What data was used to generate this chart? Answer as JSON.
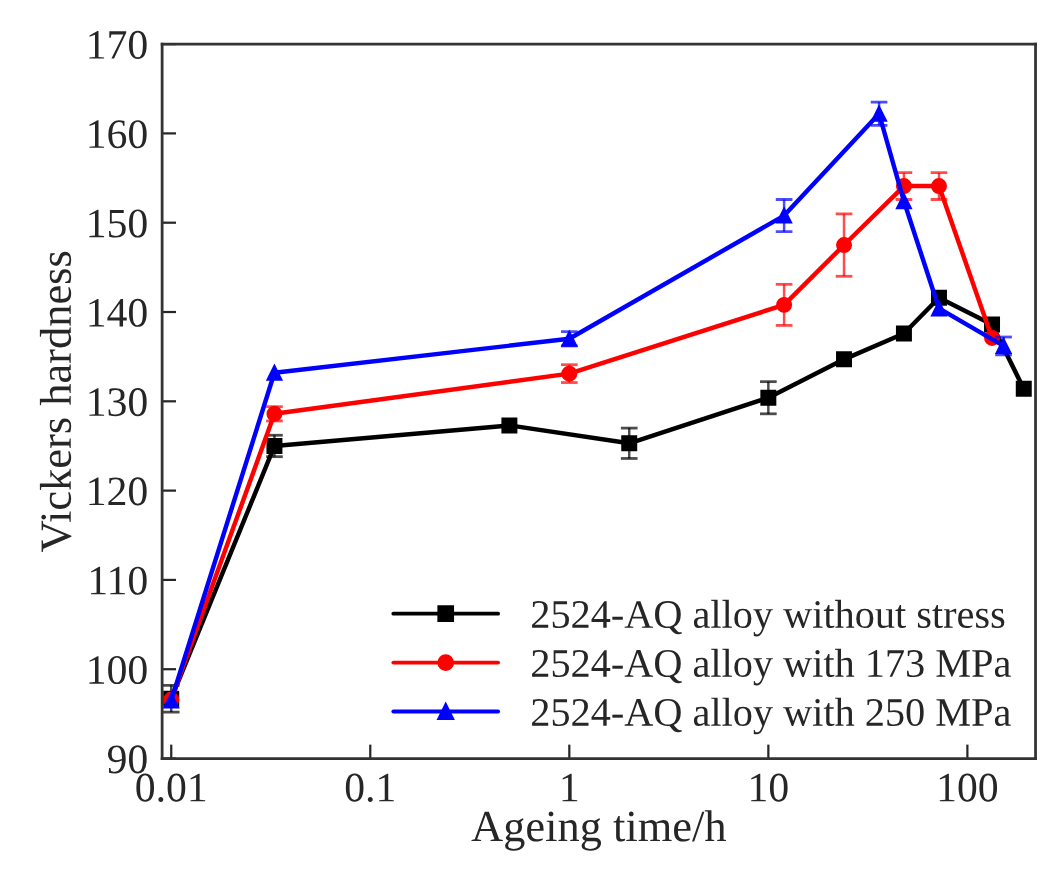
{
  "chart_data": {
    "type": "line",
    "xlabel": "Ageing time/h",
    "ylabel": "Vickers hardness",
    "log": "x",
    "xlim": [
      0.009,
      220
    ],
    "xticks": [
      {
        "value": 0.01,
        "label": "0.01"
      },
      {
        "value": 0.1,
        "label": "0.1"
      },
      {
        "value": 1,
        "label": "1"
      },
      {
        "value": 10,
        "label": "10"
      },
      {
        "value": 100,
        "label": "100"
      }
    ],
    "ylim": [
      90,
      170
    ],
    "yticks": [
      90,
      100,
      110,
      120,
      130,
      140,
      150,
      160,
      170
    ],
    "grid": false,
    "legend": "bottom right",
    "series": [
      {
        "name": "2524-AQ alloy without stress",
        "color": "#000000",
        "marker": "square",
        "x": [
          0.01,
          0.033,
          0.5,
          2,
          10,
          24,
          48,
          72,
          133,
          192
        ],
        "values": [
          96.7,
          125.0,
          127.3,
          125.3,
          130.4,
          134.7,
          137.6,
          141.6,
          138.6,
          131.4
        ],
        "errors": [
          1.5,
          1.2,
          null,
          1.7,
          1.8,
          null,
          null,
          null,
          null,
          null
        ]
      },
      {
        "name": "2524-AQ alloy with 173 MPa",
        "color": "#ff0000",
        "marker": "circle",
        "x": [
          0.01,
          0.033,
          1,
          12,
          24,
          48,
          72,
          133
        ],
        "values": [
          96.6,
          128.6,
          133.1,
          140.8,
          147.5,
          154.1,
          154.1,
          137.1
        ],
        "errors": [
          null,
          0.8,
          1.0,
          2.3,
          3.5,
          1.5,
          1.5,
          null
        ]
      },
      {
        "name": "2524-AQ alloy with 250 MPa",
        "color": "#0000ff",
        "marker": "triangle",
        "x": [
          0.01,
          0.033,
          1,
          12,
          36,
          48,
          72,
          152
        ],
        "values": [
          96.5,
          133.2,
          137.0,
          150.8,
          162.2,
          152.4,
          140.4,
          136.2
        ],
        "errors": [
          null,
          null,
          0.8,
          1.8,
          1.3,
          null,
          null,
          1.0
        ]
      }
    ]
  }
}
